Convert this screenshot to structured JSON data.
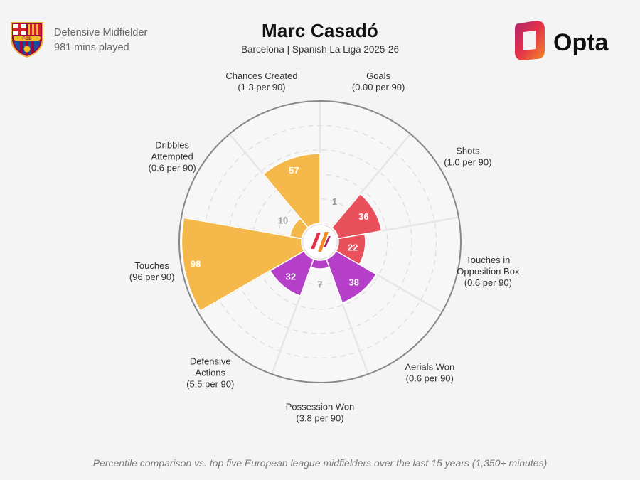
{
  "header": {
    "player_name": "Marc Casadó",
    "subtitle": "Barcelona | Spanish La Liga 2025-26",
    "position": "Defensive Midfielder",
    "minutes": "981 mins played",
    "brand_name": "Opta",
    "crest_text": "FCB"
  },
  "footnote": "Percentile comparison vs. top five European league midfielders over the last 15 years (1,350+ minutes)",
  "colors": {
    "attacking": "#e8505b",
    "possession": "#f5b84a",
    "defending": "#b53fc9",
    "ring": "#dddddd",
    "outline": "#888888"
  },
  "chart_data": {
    "type": "polar-bar",
    "value_range": [
      0,
      100
    ],
    "series": [
      {
        "name": "Goals",
        "label_lines": [
          "Goals",
          "(0.00 per 90)"
        ],
        "value": 1,
        "group": "attacking"
      },
      {
        "name": "Shots",
        "label_lines": [
          "Shots",
          "(1.0 per 90)"
        ],
        "value": 36,
        "group": "attacking"
      },
      {
        "name": "Touches in Opposition Box",
        "label_lines": [
          "Touches in",
          "Opposition Box",
          "(0.6 per 90)"
        ],
        "value": 22,
        "group": "attacking"
      },
      {
        "name": "Aerials Won",
        "label_lines": [
          "Aerials Won",
          "(0.6 per 90)"
        ],
        "value": 38,
        "group": "defending"
      },
      {
        "name": "Possession Won",
        "label_lines": [
          "Possession Won",
          "(3.8 per 90)"
        ],
        "value": 7,
        "group": "defending"
      },
      {
        "name": "Defensive Actions",
        "label_lines": [
          "Defensive",
          "Actions",
          "(5.5 per 90)"
        ],
        "value": 32,
        "group": "defending"
      },
      {
        "name": "Touches",
        "label_lines": [
          "Touches",
          "(96 per 90)"
        ],
        "value": 98,
        "group": "possession"
      },
      {
        "name": "Dribbles Attempted",
        "label_lines": [
          "Dribbles",
          "Attempted",
          "(0.6 per 90)"
        ],
        "value": 10,
        "group": "possession"
      },
      {
        "name": "Chances Created",
        "label_lines": [
          "Chances Created",
          "(1.3 per 90)"
        ],
        "value": 57,
        "group": "possession"
      }
    ]
  }
}
